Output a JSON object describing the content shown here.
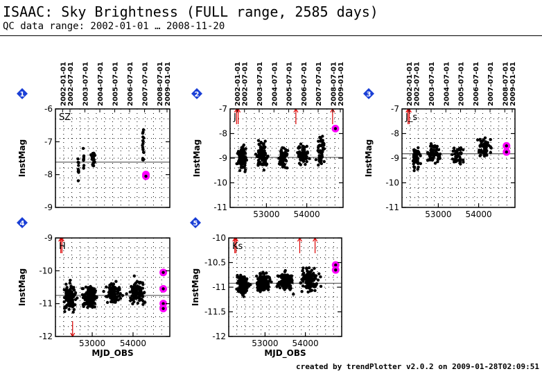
{
  "header": {
    "title": "ISAAC: Sky Brightness (FULL range, 2585 days)",
    "subtitle": "QC data range: 2002-01-01 … 2008-11-20"
  },
  "footer": "created by trendPlotter v2.0.2 on 2009-01-28T02:09:51",
  "colors": {
    "points": "#000000",
    "highlight": "#ff00ff",
    "outlier": "#dd0000",
    "badge": "#1a3fd6",
    "refline": "#555555"
  },
  "chart_data": [
    {
      "type": "scatter",
      "badge": "1",
      "label": "SZ",
      "ylabel": "InstMag",
      "xlabel": "",
      "ylim": [
        -9,
        -6
      ],
      "yticks": [
        -9,
        -8,
        -7,
        -6
      ],
      "xticks": [],
      "reference_line": -7.62,
      "top_dates": [
        "2002-01-01",
        "2002-07-01",
        "2003-07-01",
        "2004-07-01",
        "2005-07-01",
        "2006-07-01",
        "2007-07-01",
        "2008-07-01",
        "2009-01-01"
      ],
      "clusters": [
        {
          "x": 52660,
          "y": -7.8,
          "spread": 0.55,
          "n": 10,
          "xspread": 15
        },
        {
          "x": 52790,
          "y": -7.6,
          "spread": 0.4,
          "n": 10,
          "xspread": 15
        },
        {
          "x": 53020,
          "y": -7.5,
          "spread": 0.25,
          "n": 30,
          "xspread": 45
        },
        {
          "x": 54250,
          "y": -7.2,
          "spread": 0.6,
          "n": 18,
          "xspread": 25
        }
      ],
      "highlights": [
        {
          "x": 54315,
          "y": -8.0
        },
        {
          "x": 54315,
          "y": -8.05
        }
      ],
      "outliers": []
    },
    {
      "type": "scatter",
      "badge": "2",
      "label": "J",
      "ylabel": "InstMag",
      "xlabel": "",
      "ylim": [
        -11,
        -7
      ],
      "yticks": [
        -11,
        -10,
        -9,
        -8,
        -7
      ],
      "xticks": [
        53000,
        54000
      ],
      "reference_line": -8.97,
      "top_dates": [
        "2002-01-01",
        "2002-07-01",
        "2003-07-01",
        "2004-07-01",
        "2005-07-01",
        "2006-07-01",
        "2007-07-01",
        "2008-07-01",
        "2009-01-01"
      ],
      "clusters": [
        {
          "x": 52400,
          "y": -9.0,
          "spread": 0.5,
          "n": 90,
          "xspread": 120
        },
        {
          "x": 52900,
          "y": -8.9,
          "spread": 0.55,
          "n": 90,
          "xspread": 150
        },
        {
          "x": 53400,
          "y": -9.0,
          "spread": 0.45,
          "n": 60,
          "xspread": 120
        },
        {
          "x": 53900,
          "y": -8.9,
          "spread": 0.55,
          "n": 60,
          "xspread": 150
        },
        {
          "x": 54350,
          "y": -8.7,
          "spread": 0.7,
          "n": 50,
          "xspread": 120
        }
      ],
      "highlights": [
        {
          "x": 54710,
          "y": -7.8
        }
      ],
      "outliers": [
        {
          "x": 52260,
          "y": -7
        },
        {
          "x": 52300,
          "y": -7
        },
        {
          "x": 53730,
          "y": -7
        },
        {
          "x": 54640,
          "y": -7
        }
      ]
    },
    {
      "type": "scatter",
      "badge": "3",
      "label": "J_s",
      "ylabel": "InstMag",
      "xlabel": "",
      "ylim": [
        -11,
        -7
      ],
      "yticks": [
        -11,
        -10,
        -9,
        -8,
        -7
      ],
      "xticks": [
        53000,
        54000
      ],
      "reference_line": -8.82,
      "top_dates": [
        "2002-01-01",
        "2002-07-01",
        "2003-07-01",
        "2004-07-01",
        "2005-07-01",
        "2006-07-01",
        "2007-07-01",
        "2008-07-01",
        "2009-01-01"
      ],
      "clusters": [
        {
          "x": 52450,
          "y": -9.0,
          "spread": 0.5,
          "n": 60,
          "xspread": 110
        },
        {
          "x": 52900,
          "y": -8.8,
          "spread": 0.5,
          "n": 60,
          "xspread": 150
        },
        {
          "x": 53500,
          "y": -8.9,
          "spread": 0.5,
          "n": 45,
          "xspread": 180
        },
        {
          "x": 54150,
          "y": -8.6,
          "spread": 0.5,
          "n": 50,
          "xspread": 200
        }
      ],
      "highlights": [
        {
          "x": 54690,
          "y": -8.5
        },
        {
          "x": 54690,
          "y": -8.75
        }
      ],
      "outliers": [
        {
          "x": 52250,
          "y": -7
        },
        {
          "x": 52280,
          "y": -7
        }
      ]
    },
    {
      "type": "scatter",
      "badge": "4",
      "label": "H",
      "ylabel": "InstMag",
      "xlabel": "MJD_OBS",
      "ylim": [
        -12,
        -9
      ],
      "yticks": [
        -12,
        -11,
        -10,
        -9
      ],
      "xticks": [
        53000,
        54000
      ],
      "reference_line": -10.75,
      "top_dates": [],
      "clusters": [
        {
          "x": 52450,
          "y": -10.8,
          "spread": 0.4,
          "n": 150,
          "xspread": 160
        },
        {
          "x": 52950,
          "y": -10.8,
          "spread": 0.35,
          "n": 120,
          "xspread": 180
        },
        {
          "x": 53500,
          "y": -10.7,
          "spread": 0.35,
          "n": 100,
          "xspread": 200
        },
        {
          "x": 54100,
          "y": -10.65,
          "spread": 0.4,
          "n": 100,
          "xspread": 220
        }
      ],
      "highlights": [
        {
          "x": 54740,
          "y": -10.05
        },
        {
          "x": 54740,
          "y": -10.55
        },
        {
          "x": 54740,
          "y": -11.0
        },
        {
          "x": 54740,
          "y": -11.15
        }
      ],
      "outliers": [
        {
          "x": 52230,
          "y": -9
        },
        {
          "x": 52260,
          "y": -9
        },
        {
          "x": 52520,
          "y": -12
        }
      ]
    },
    {
      "type": "scatter",
      "badge": "5",
      "label": "Ks",
      "ylabel": "InstMag",
      "xlabel": "MJD_OBS",
      "ylim": [
        -12,
        -10
      ],
      "yticks": [
        -12,
        -11.5,
        -11,
        -10.5,
        -10
      ],
      "xticks": [
        53000,
        54000
      ],
      "reference_line": -10.92,
      "top_dates": [],
      "clusters": [
        {
          "x": 52450,
          "y": -10.95,
          "spread": 0.22,
          "n": 170,
          "xspread": 160
        },
        {
          "x": 52950,
          "y": -10.9,
          "spread": 0.2,
          "n": 150,
          "xspread": 180
        },
        {
          "x": 53500,
          "y": -10.88,
          "spread": 0.2,
          "n": 120,
          "xspread": 200
        },
        {
          "x": 54100,
          "y": -10.85,
          "spread": 0.25,
          "n": 130,
          "xspread": 220
        }
      ],
      "highlights": [
        {
          "x": 54750,
          "y": -10.55
        },
        {
          "x": 54750,
          "y": -10.65
        }
      ],
      "outliers": [
        {
          "x": 52250,
          "y": -10
        },
        {
          "x": 52280,
          "y": -10
        },
        {
          "x": 53860,
          "y": -10
        },
        {
          "x": 54240,
          "y": -10
        }
      ]
    }
  ]
}
